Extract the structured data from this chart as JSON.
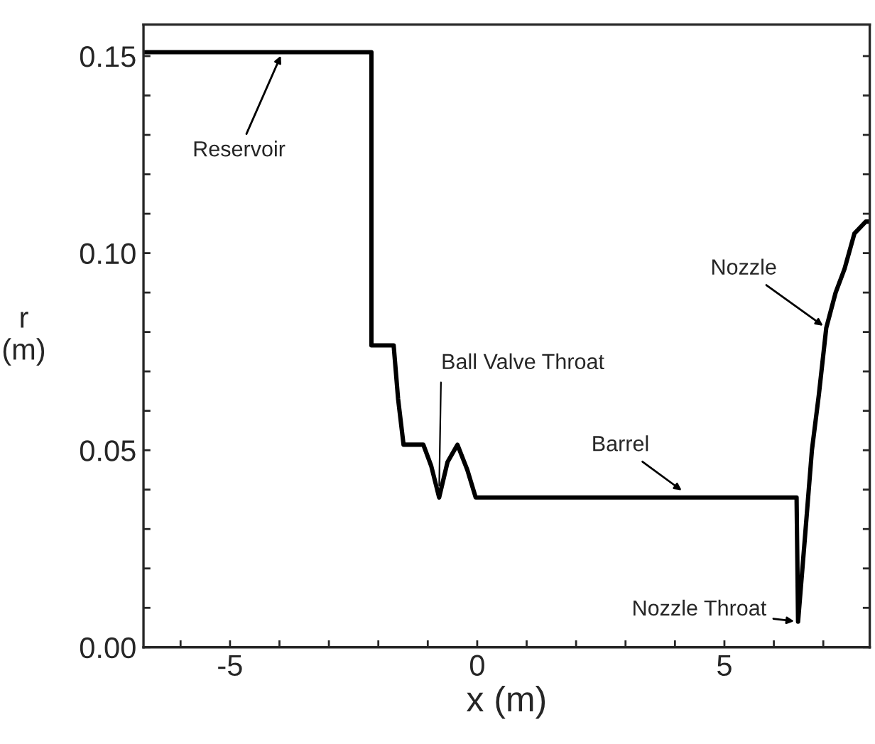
{
  "chart_data": {
    "type": "line",
    "xlabel": "x (m)",
    "ylabel": "r\n(m)",
    "series": [
      {
        "color": "#000000",
        "x": [
          -6.75,
          -2.14,
          -2.14,
          -1.69,
          -1.6,
          -1.49,
          -1.09,
          -0.93,
          -0.77,
          -0.6,
          -0.4,
          -0.2,
          -0.03,
          6.46,
          6.49,
          6.63,
          6.77,
          6.91,
          7.06,
          7.25,
          7.43,
          7.63,
          7.86,
          7.94
        ],
        "values": [
          0.151,
          0.151,
          0.0766,
          0.0766,
          0.063,
          0.0514,
          0.0514,
          0.046,
          0.038,
          0.047,
          0.0514,
          0.045,
          0.038,
          0.038,
          0.0065,
          0.028,
          0.05,
          0.064,
          0.081,
          0.09,
          0.096,
          0.105,
          0.108,
          0.108
        ]
      }
    ],
    "xlim": [
      -6.75,
      7.94
    ],
    "ylim": [
      0,
      0.158
    ],
    "xticks": [
      {
        "value": -6,
        "label": null
      },
      -5,
      {
        "value": -4,
        "label": null
      },
      {
        "value": -3,
        "label": null
      },
      {
        "value": -2,
        "label": null
      },
      {
        "value": -1,
        "label": null
      },
      0,
      {
        "value": 1,
        "label": null
      },
      {
        "value": 2,
        "label": null
      },
      {
        "value": 3,
        "label": null
      },
      {
        "value": 4,
        "label": null
      },
      5,
      {
        "value": 6,
        "label": null
      },
      {
        "value": 7,
        "label": null
      }
    ],
    "yticks": [
      "0.00",
      {
        "value": 0.01,
        "label": null
      },
      {
        "value": 0.02,
        "label": null
      },
      {
        "value": 0.03,
        "label": null
      },
      {
        "value": 0.04,
        "label": null
      },
      {
        "value": 0.05,
        "label": "0.05"
      },
      {
        "value": 0.06,
        "label": null
      },
      {
        "value": 0.07,
        "label": null
      },
      {
        "value": 0.08,
        "label": null
      },
      {
        "value": 0.09,
        "label": null
      },
      {
        "value": 0.1,
        "label": "0.10"
      },
      {
        "value": 0.11,
        "label": null
      },
      {
        "value": 0.12,
        "label": null
      },
      {
        "value": 0.13,
        "label": null
      },
      {
        "value": 0.14,
        "label": null
      },
      {
        "value": 0.15,
        "label": "0.15"
      }
    ],
    "marker": "none",
    "line_style": "solid",
    "grid": false,
    "legend": false,
    "annotations": [
      {
        "text": "Reservoir",
        "x": -3.94,
        "y": 0.151
      },
      {
        "text": "Ball Valve Throat",
        "x": -0.77,
        "y": 0.04
      },
      {
        "text": "Barrel",
        "x": 4.2,
        "y": 0.0392
      },
      {
        "text": "Nozzle",
        "x": 7.06,
        "y": 0.081
      },
      {
        "text": "Nozzle Throat",
        "x": 6.49,
        "y": 0.0065
      }
    ]
  }
}
